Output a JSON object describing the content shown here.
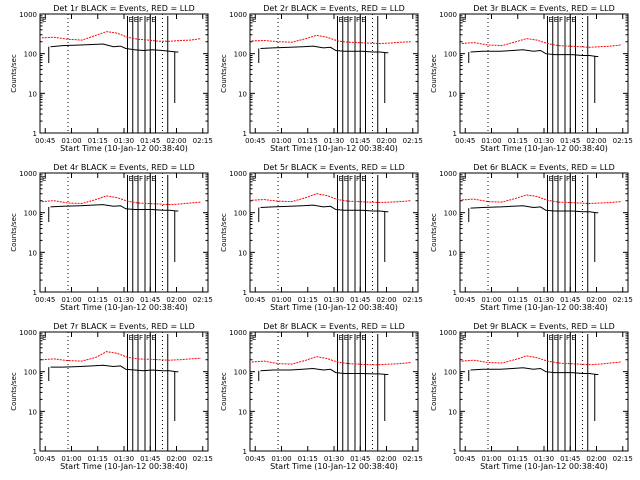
{
  "chart_data": {
    "type": "line",
    "y_log": true,
    "ylim": [
      1,
      1000
    ],
    "xlim_hours": [
      0.7,
      2.3
    ],
    "ylabel": "Counts/sec",
    "xlabel": "Start Time (10-Jan-12 00:38:40)",
    "x_tick_labels": [
      "00:45",
      "01:00",
      "01:15",
      "01:30",
      "01:45",
      "02:00",
      "02:15"
    ],
    "x_tick_values": [
      0.75,
      1.0,
      1.25,
      1.5,
      1.75,
      2.0,
      2.25
    ],
    "y_tick_labels": [
      "1",
      "10",
      "100",
      "1000"
    ],
    "y_tick_values": [
      1,
      10,
      100,
      1000
    ],
    "colors": {
      "events": "#000000",
      "lld": "#ff0000"
    },
    "flag_labels": [
      "E",
      "E",
      "F",
      "F",
      "E"
    ],
    "panels": [
      {
        "title": "Det 1r BLACK = Events, RED = LLD",
        "events_x": [
          "00:48",
          "00:55",
          "01:05",
          "01:12",
          "01:18",
          "01:24",
          "01:28",
          "01:31",
          "01:36",
          "01:41",
          "01:46",
          "01:52",
          "01:56",
          "02:00",
          "02:01"
        ],
        "events_y": [
          150,
          160,
          165,
          170,
          175,
          150,
          155,
          135,
          125,
          120,
          125,
          120,
          115,
          110,
          110
        ],
        "lld_x": [
          "00:43",
          "00:50",
          "00:58",
          "01:06",
          "01:14",
          "01:20",
          "01:26",
          "01:32",
          "01:38",
          "01:44",
          "01:50",
          "01:56",
          "02:02",
          "02:08",
          "02:14"
        ],
        "lld_y": [
          250,
          260,
          230,
          220,
          290,
          360,
          330,
          260,
          230,
          220,
          205,
          205,
          215,
          220,
          240
        ]
      },
      {
        "title": "Det 2r BLACK = Events, RED = LLD",
        "events_x": [
          "00:48",
          "00:55",
          "01:05",
          "01:12",
          "01:18",
          "01:24",
          "01:28",
          "01:31",
          "01:36",
          "01:41",
          "01:46",
          "01:52",
          "01:56",
          "02:00",
          "02:01"
        ],
        "events_y": [
          135,
          140,
          145,
          150,
          155,
          140,
          145,
          120,
          115,
          115,
          115,
          110,
          110,
          105,
          105
        ],
        "lld_x": [
          "00:43",
          "00:50",
          "00:58",
          "01:06",
          "01:14",
          "01:20",
          "01:26",
          "01:32",
          "01:38",
          "01:44",
          "01:50",
          "01:56",
          "02:02",
          "02:08",
          "02:14"
        ],
        "lld_y": [
          210,
          215,
          200,
          195,
          240,
          290,
          260,
          210,
          195,
          190,
          185,
          180,
          185,
          195,
          200
        ]
      },
      {
        "title": "Det 3r BLACK = Events, RED = LLD",
        "events_x": [
          "00:48",
          "00:55",
          "01:05",
          "01:12",
          "01:18",
          "01:24",
          "01:28",
          "01:31",
          "01:36",
          "01:41",
          "01:46",
          "01:52",
          "01:56",
          "02:00",
          "02:01"
        ],
        "events_y": [
          110,
          115,
          115,
          120,
          125,
          115,
          120,
          100,
          95,
          95,
          95,
          90,
          90,
          85,
          85
        ],
        "lld_x": [
          "00:43",
          "00:50",
          "00:58",
          "01:06",
          "01:14",
          "01:20",
          "01:26",
          "01:32",
          "01:38",
          "01:44",
          "01:50",
          "01:56",
          "02:02",
          "02:08",
          "02:14"
        ],
        "lld_y": [
          180,
          190,
          165,
          160,
          200,
          240,
          220,
          180,
          160,
          155,
          150,
          145,
          150,
          155,
          165
        ]
      },
      {
        "title": "Det 4r BLACK = Events, RED = LLD",
        "events_x": [
          "00:48",
          "00:55",
          "01:05",
          "01:12",
          "01:18",
          "01:24",
          "01:28",
          "01:31",
          "01:36",
          "01:41",
          "01:46",
          "01:52",
          "01:56",
          "02:00",
          "02:01"
        ],
        "events_y": [
          140,
          145,
          150,
          155,
          160,
          145,
          150,
          125,
          120,
          120,
          120,
          115,
          115,
          110,
          110
        ],
        "lld_x": [
          "00:43",
          "00:50",
          "00:58",
          "01:06",
          "01:14",
          "01:20",
          "01:26",
          "01:32",
          "01:38",
          "01:44",
          "01:50",
          "01:56",
          "02:02",
          "02:08",
          "02:14"
        ],
        "lld_y": [
          190,
          200,
          175,
          170,
          215,
          265,
          240,
          195,
          175,
          170,
          165,
          160,
          165,
          175,
          185
        ]
      },
      {
        "title": "Det 5r BLACK = Events, RED = LLD",
        "events_x": [
          "00:48",
          "00:55",
          "01:05",
          "01:12",
          "01:18",
          "01:24",
          "01:28",
          "01:31",
          "01:36",
          "01:41",
          "01:46",
          "01:52",
          "01:56",
          "02:00",
          "02:01"
        ],
        "events_y": [
          135,
          140,
          145,
          150,
          155,
          140,
          145,
          120,
          115,
          115,
          115,
          110,
          110,
          105,
          105
        ],
        "lld_x": [
          "00:43",
          "00:50",
          "00:58",
          "01:06",
          "01:14",
          "01:20",
          "01:26",
          "01:32",
          "01:38",
          "01:44",
          "01:50",
          "01:56",
          "02:02",
          "02:08",
          "02:14"
        ],
        "lld_y": [
          205,
          215,
          195,
          190,
          240,
          300,
          270,
          215,
          195,
          190,
          185,
          180,
          185,
          190,
          200
        ]
      },
      {
        "title": "Det 6r BLACK = Events, RED = LLD",
        "events_x": [
          "00:48",
          "00:55",
          "01:05",
          "01:12",
          "01:18",
          "01:24",
          "01:28",
          "01:31",
          "01:36",
          "01:41",
          "01:46",
          "01:52",
          "01:56",
          "02:00",
          "02:01"
        ],
        "events_y": [
          130,
          135,
          140,
          145,
          150,
          135,
          140,
          115,
          110,
          110,
          110,
          105,
          105,
          100,
          100
        ],
        "lld_x": [
          "00:43",
          "00:50",
          "00:58",
          "01:06",
          "01:14",
          "01:20",
          "01:26",
          "01:32",
          "01:38",
          "01:44",
          "01:50",
          "01:56",
          "02:02",
          "02:08",
          "02:14"
        ],
        "lld_y": [
          210,
          220,
          190,
          185,
          230,
          280,
          255,
          205,
          185,
          180,
          175,
          170,
          175,
          180,
          190
        ]
      },
      {
        "title": "Det 7r BLACK = Events, RED = LLD",
        "events_x": [
          "00:48",
          "00:55",
          "01:05",
          "01:12",
          "01:18",
          "01:24",
          "01:28",
          "01:31",
          "01:36",
          "01:41",
          "01:46",
          "01:52",
          "01:56",
          "02:00",
          "02:01"
        ],
        "events_y": [
          130,
          130,
          135,
          140,
          145,
          135,
          140,
          115,
          110,
          105,
          110,
          105,
          105,
          100,
          100
        ],
        "lld_x": [
          "00:43",
          "00:50",
          "00:58",
          "01:06",
          "01:14",
          "01:20",
          "01:26",
          "01:32",
          "01:38",
          "01:44",
          "01:50",
          "01:56",
          "02:02",
          "02:08",
          "02:14"
        ],
        "lld_y": [
          200,
          210,
          190,
          185,
          230,
          320,
          290,
          230,
          210,
          205,
          200,
          195,
          200,
          210,
          220
        ]
      },
      {
        "title": "Det 8r BLACK = Events, RED = LLD",
        "events_x": [
          "00:48",
          "00:55",
          "01:05",
          "01:12",
          "01:18",
          "01:24",
          "01:28",
          "01:31",
          "01:36",
          "01:41",
          "01:46",
          "01:52",
          "01:56",
          "02:00",
          "02:01"
        ],
        "events_y": [
          105,
          110,
          110,
          115,
          120,
          110,
          115,
          95,
          90,
          90,
          90,
          88,
          88,
          85,
          85
        ],
        "lld_x": [
          "00:43",
          "00:50",
          "00:58",
          "01:06",
          "01:14",
          "01:20",
          "01:26",
          "01:32",
          "01:38",
          "01:44",
          "01:50",
          "01:56",
          "02:02",
          "02:08",
          "02:14"
        ],
        "lld_y": [
          175,
          185,
          160,
          155,
          195,
          240,
          215,
          175,
          160,
          155,
          150,
          150,
          155,
          160,
          170
        ]
      },
      {
        "title": "Det 9r BLACK = Events, RED = LLD",
        "events_x": [
          "00:48",
          "00:55",
          "01:05",
          "01:12",
          "01:18",
          "01:24",
          "01:28",
          "01:31",
          "01:36",
          "01:41",
          "01:46",
          "01:52",
          "01:56",
          "02:00",
          "02:01"
        ],
        "events_y": [
          110,
          115,
          115,
          120,
          125,
          115,
          120,
          100,
          95,
          95,
          95,
          90,
          90,
          85,
          85
        ],
        "lld_x": [
          "00:43",
          "00:50",
          "00:58",
          "01:06",
          "01:14",
          "01:20",
          "01:26",
          "01:32",
          "01:38",
          "01:44",
          "01:50",
          "01:56",
          "02:02",
          "02:08",
          "02:14"
        ],
        "lld_y": [
          185,
          195,
          170,
          165,
          205,
          250,
          225,
          185,
          165,
          160,
          155,
          150,
          155,
          165,
          175
        ]
      }
    ],
    "dotted_lines_x": [
      "00:58",
      "01:52"
    ],
    "event_spikes_x": [
      "01:32",
      "01:35",
      "01:38",
      "01:42",
      "01:45",
      "01:48",
      "01:55"
    ],
    "drop_lines_x": [
      "00:47",
      "01:59"
    ]
  }
}
